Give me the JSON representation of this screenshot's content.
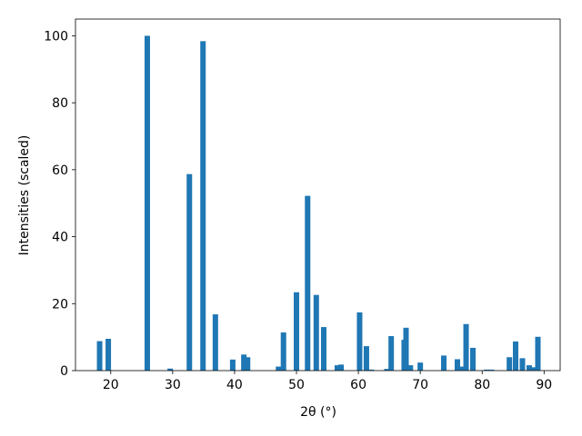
{
  "chart_data": {
    "type": "bar",
    "xlabel": "2θ (°)",
    "ylabel": "Intensities (scaled)",
    "color": "#1f77b4",
    "x": [
      18.2,
      19.6,
      25.9,
      29.6,
      32.7,
      34.9,
      36.9,
      39.7,
      41.5,
      42.1,
      47.1,
      47.9,
      50.0,
      51.8,
      53.2,
      54.4,
      56.6,
      57.2,
      60.2,
      61.3,
      62.1,
      64.6,
      65.3,
      67.4,
      67.7,
      68.4,
      70.0,
      73.8,
      76.0,
      76.8,
      77.4,
      78.5,
      80.7,
      81.5,
      84.4,
      85.4,
      86.5,
      87.6,
      88.4,
      89.0
    ],
    "values": [
      8.8,
      9.5,
      100,
      0.6,
      58.7,
      98.4,
      16.8,
      3.3,
      4.8,
      4.0,
      1.2,
      11.4,
      23.4,
      52.2,
      22.6,
      13.0,
      1.6,
      1.8,
      17.4,
      7.3,
      0.3,
      0.5,
      10.3,
      9.2,
      12.8,
      1.6,
      2.4,
      4.5,
      3.4,
      1.2,
      13.9,
      6.8,
      0.3,
      0.3,
      4.0,
      8.7,
      3.7,
      1.6,
      1.0,
      10.1
    ],
    "xlim": [
      14.3,
      92.6
    ],
    "ylim": [
      0,
      105
    ],
    "xticks": [
      20,
      30,
      40,
      50,
      60,
      70,
      80,
      90
    ],
    "yticks": [
      0,
      20,
      40,
      60,
      80,
      100
    ]
  }
}
